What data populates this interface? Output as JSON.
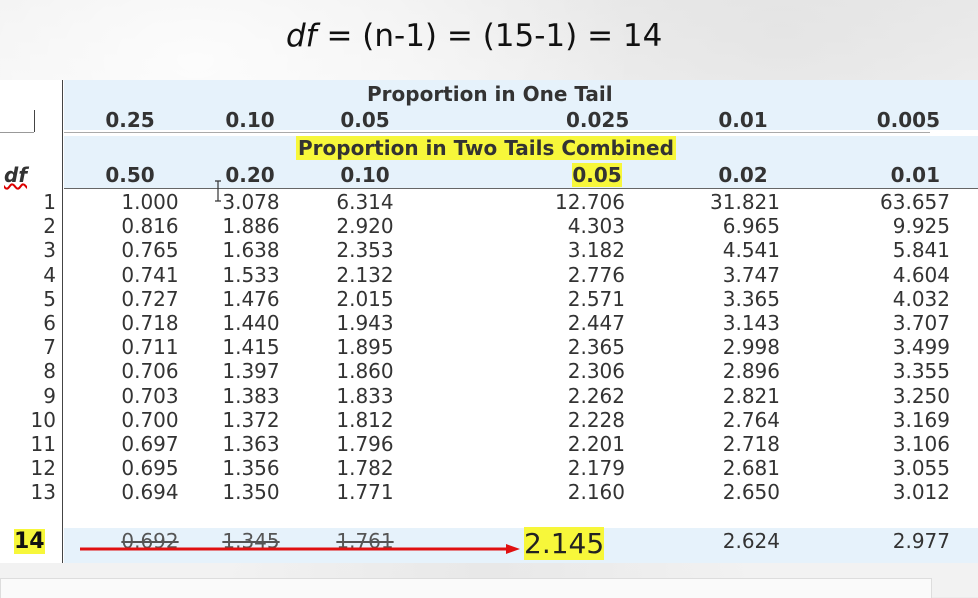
{
  "formula": {
    "df": "df",
    "rest": " = (n-1) = (15-1) = 14"
  },
  "table": {
    "one_tail_title": "Proportion in One Tail",
    "one_tail": [
      "0.25",
      "0.10",
      "0.05",
      "0.025",
      "0.01",
      "0.005"
    ],
    "two_tail_title": "Proportion in Two Tails Combined",
    "df_label": "df",
    "two_tail": [
      "0.50",
      "0.20",
      "0.10",
      "0.05",
      "0.02",
      "0.01"
    ],
    "rows": [
      {
        "df": "1",
        "v": [
          "1.000",
          "3.078",
          "6.314",
          "12.706",
          "31.821",
          "63.657"
        ]
      },
      {
        "df": "2",
        "v": [
          "0.816",
          "1.886",
          "2.920",
          "4.303",
          "6.965",
          "9.925"
        ]
      },
      {
        "df": "3",
        "v": [
          "0.765",
          "1.638",
          "2.353",
          "3.182",
          "4.541",
          "5.841"
        ]
      },
      {
        "df": "4",
        "v": [
          "0.741",
          "1.533",
          "2.132",
          "2.776",
          "3.747",
          "4.604"
        ]
      },
      {
        "df": "5",
        "v": [
          "0.727",
          "1.476",
          "2.015",
          "2.571",
          "3.365",
          "4.032"
        ]
      },
      {
        "df": "6",
        "v": [
          "0.718",
          "1.440",
          "1.943",
          "2.447",
          "3.143",
          "3.707"
        ]
      },
      {
        "df": "7",
        "v": [
          "0.711",
          "1.415",
          "1.895",
          "2.365",
          "2.998",
          "3.499"
        ]
      },
      {
        "df": "8",
        "v": [
          "0.706",
          "1.397",
          "1.860",
          "2.306",
          "2.896",
          "3.355"
        ]
      },
      {
        "df": "9",
        "v": [
          "0.703",
          "1.383",
          "1.833",
          "2.262",
          "2.821",
          "3.250"
        ]
      },
      {
        "df": "10",
        "v": [
          "0.700",
          "1.372",
          "1.812",
          "2.228",
          "2.764",
          "3.169"
        ]
      },
      {
        "df": "11",
        "v": [
          "0.697",
          "1.363",
          "1.796",
          "2.201",
          "2.718",
          "3.106"
        ]
      },
      {
        "df": "12",
        "v": [
          "0.695",
          "1.356",
          "1.782",
          "2.179",
          "2.681",
          "3.055"
        ]
      },
      {
        "df": "13",
        "v": [
          "0.694",
          "1.350",
          "1.771",
          "2.160",
          "2.650",
          "3.012"
        ]
      },
      {
        "df": "14",
        "v": [
          "0.692",
          "1.345",
          "1.761",
          "2.145",
          "2.624",
          "2.977"
        ]
      }
    ]
  },
  "colors": {
    "highlight": "#f7f73a",
    "arrow": "#e01010",
    "band": "#e6f2fb"
  }
}
